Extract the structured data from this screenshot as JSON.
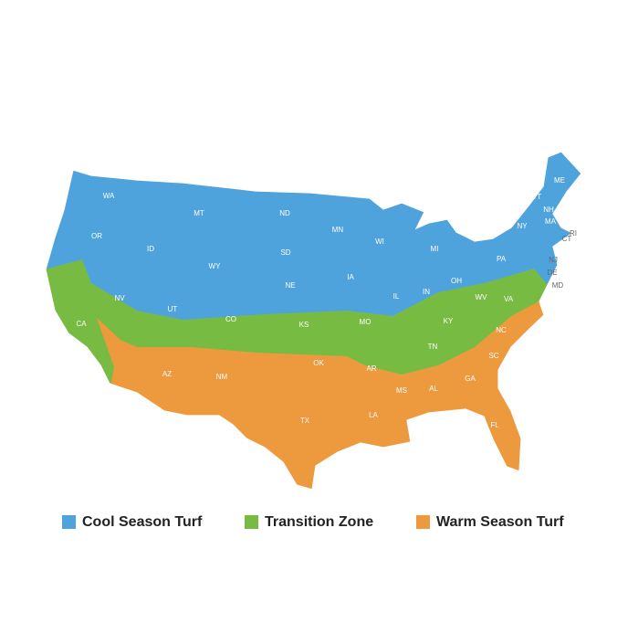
{
  "map": {
    "states": [
      "WA",
      "OR",
      "CA",
      "NV",
      "ID",
      "MT",
      "WY",
      "UT",
      "AZ",
      "CO",
      "NM",
      "ND",
      "SD",
      "NE",
      "KS",
      "OK",
      "TX",
      "MN",
      "IA",
      "MO",
      "AR",
      "LA",
      "WI",
      "IL",
      "MS",
      "MI",
      "IN",
      "KY",
      "TN",
      "AL",
      "OH",
      "GA",
      "FL",
      "SC",
      "NC",
      "VA",
      "WV",
      "PA",
      "NY",
      "VT",
      "NH",
      "ME",
      "MA",
      "RI",
      "CT",
      "NJ",
      "DE",
      "MD"
    ],
    "legend": [
      {
        "label": "Cool Season Turf",
        "color": "#4fa3dc"
      },
      {
        "label": "Transition Zone",
        "color": "#78bb43"
      },
      {
        "label": "Warm Season Turf",
        "color": "#ec9a3d"
      }
    ]
  }
}
